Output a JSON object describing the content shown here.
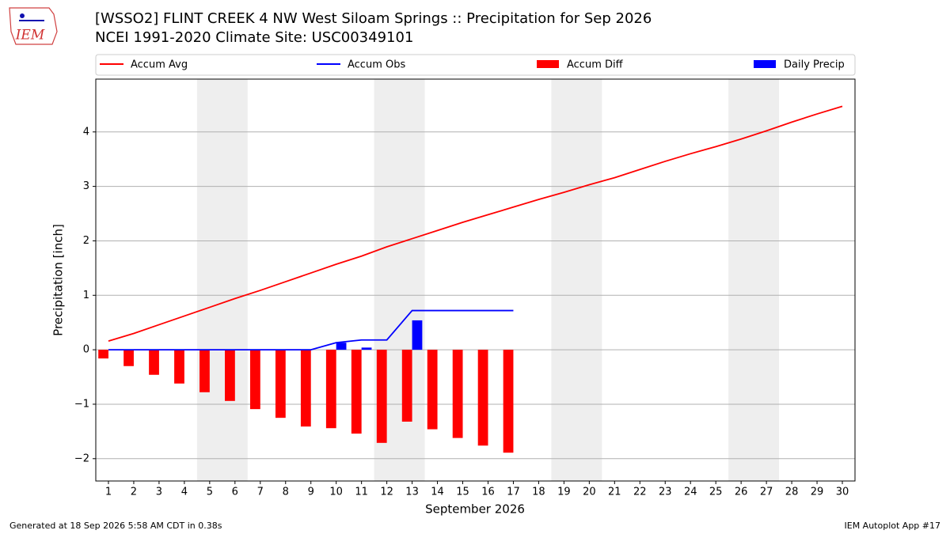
{
  "chart_data": {
    "type": "combo",
    "title": "[WSSO2] FLINT CREEK 4 NW West Siloam Springs :: Precipitation for Sep 2026",
    "subtitle": "NCEI 1991-2020 Climate Site: USC00349101",
    "logo_text": "IEM",
    "x_label": "September 2026",
    "y_label": "Precipitation [inch]",
    "x": [
      1,
      2,
      3,
      4,
      5,
      6,
      7,
      8,
      9,
      10,
      11,
      12,
      13,
      14,
      15,
      16,
      17,
      18,
      19,
      20,
      21,
      22,
      23,
      24,
      25,
      26,
      27,
      28,
      29,
      30
    ],
    "xlim": [
      0.5,
      30.5
    ],
    "xticks": [
      1,
      2,
      3,
      4,
      5,
      6,
      7,
      8,
      9,
      10,
      11,
      12,
      13,
      14,
      15,
      16,
      17,
      18,
      19,
      20,
      21,
      22,
      23,
      24,
      25,
      26,
      27,
      28,
      29,
      30
    ],
    "ylim": [
      -2.41,
      4.97
    ],
    "yticks": [
      {
        "value": -2,
        "label": "−2"
      },
      {
        "value": -1,
        "label": "−1"
      },
      0,
      1,
      2,
      3,
      4
    ],
    "grid": true,
    "weekend_spans": [
      [
        4.5,
        6.5
      ],
      [
        11.5,
        13.5
      ],
      [
        18.5,
        20.5
      ],
      [
        25.5,
        27.5
      ]
    ],
    "series": [
      {
        "name": "Accum Avg",
        "kind": "line",
        "color": "#ff0000",
        "values": [
          0.16,
          0.3,
          0.46,
          0.62,
          0.78,
          0.94,
          1.09,
          1.25,
          1.41,
          1.57,
          1.72,
          1.89,
          2.04,
          2.19,
          2.34,
          2.48,
          2.62,
          2.76,
          2.89,
          3.03,
          3.16,
          3.31,
          3.46,
          3.6,
          3.73,
          3.87,
          4.02,
          4.18,
          4.33,
          4.47
        ]
      },
      {
        "name": "Accum Obs",
        "kind": "line",
        "color": "#0000ff",
        "values": [
          0,
          0,
          0,
          0,
          0,
          0,
          0,
          0,
          0,
          0.13,
          0.18,
          0.18,
          0.72,
          0.72,
          0.72,
          0.72,
          0.72,
          null,
          null,
          null,
          null,
          null,
          null,
          null,
          null,
          null,
          null,
          null,
          null,
          null
        ]
      },
      {
        "name": "Accum Diff",
        "kind": "bar",
        "color": "#ff0000",
        "values": [
          -0.16,
          -0.3,
          -0.46,
          -0.62,
          -0.78,
          -0.94,
          -1.09,
          -1.25,
          -1.41,
          -1.44,
          -1.54,
          -1.71,
          -1.32,
          -1.46,
          -1.62,
          -1.76,
          -1.89,
          null,
          null,
          null,
          null,
          null,
          null,
          null,
          null,
          null,
          null,
          null,
          null,
          null
        ]
      },
      {
        "name": "Daily Precip",
        "kind": "bar",
        "color": "#0000ff",
        "values": [
          0,
          0,
          0,
          0,
          0,
          0,
          0,
          0,
          0,
          0.13,
          0.04,
          0,
          0.54,
          0,
          0,
          0,
          0,
          null,
          null,
          null,
          null,
          null,
          null,
          null,
          null,
          null,
          null,
          null,
          null,
          null
        ]
      }
    ],
    "footer_left": "Generated at 18 Sep 2026 5:58 AM CDT in 0.38s",
    "footer_right": "IEM Autoplot App #17"
  }
}
